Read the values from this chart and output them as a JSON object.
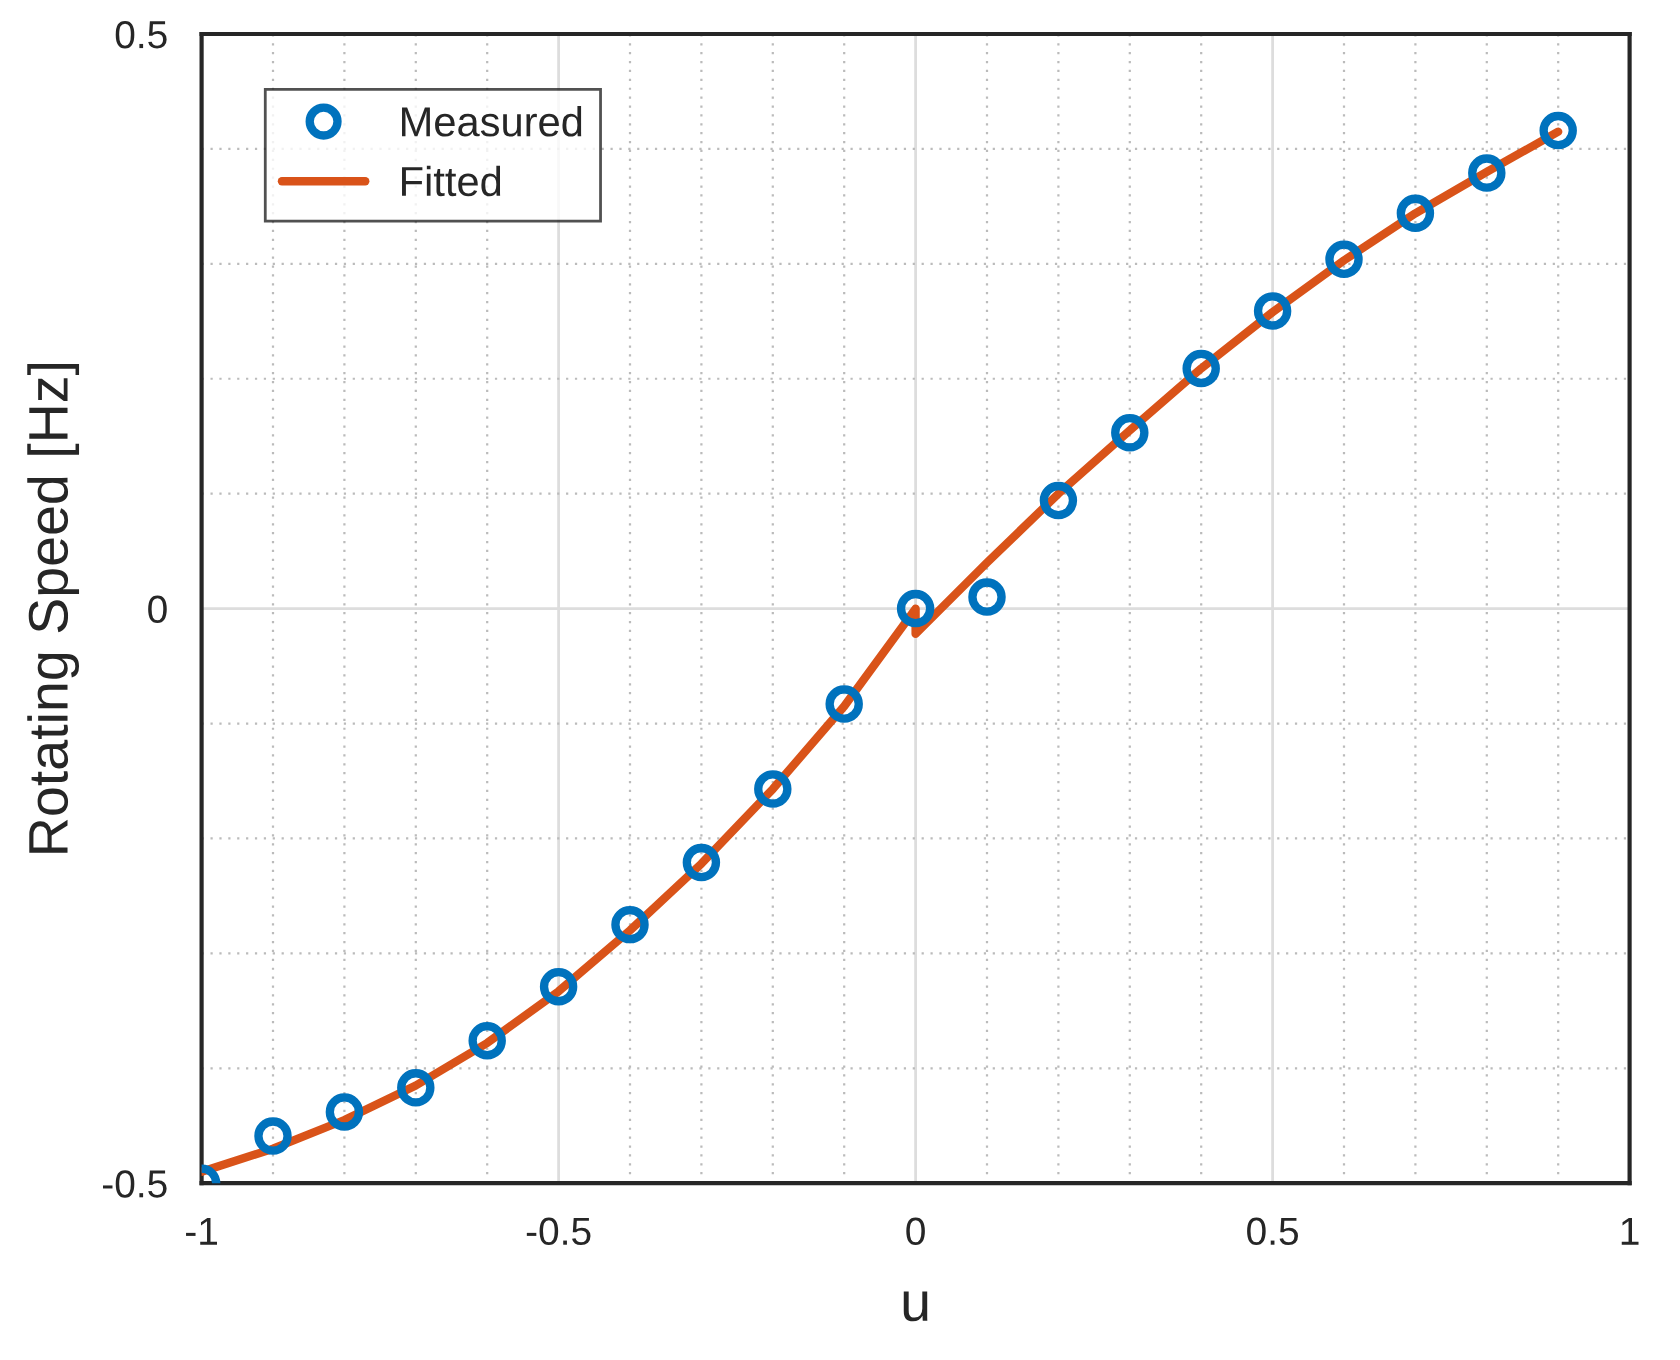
{
  "chart_data": {
    "type": "scatter",
    "xlabel": "u",
    "ylabel": "Rotating Speed [Hz]",
    "xlim": [
      -1,
      1
    ],
    "ylim": [
      -0.5,
      0.5
    ],
    "xticks": [
      -1,
      -0.5,
      0,
      0.5,
      1
    ],
    "yticks": [
      -0.5,
      0,
      0.5
    ],
    "grid": true,
    "legend": "top left",
    "series": [
      {
        "name": "Measured",
        "marker": "circle",
        "color": "#0072bd",
        "x": [
          -1,
          -0.9,
          -0.8,
          -0.7,
          -0.6,
          -0.5,
          -0.4,
          -0.3,
          -0.2,
          -0.1,
          0,
          0.1,
          0.2,
          0.3,
          0.4,
          0.5,
          0.6,
          0.7,
          0.8,
          0.9
        ],
        "values": [
          -0.5,
          -0.459,
          -0.438,
          -0.417,
          -0.376,
          -0.329,
          -0.275,
          -0.221,
          -0.157,
          -0.083,
          0.0,
          0.01,
          0.094,
          0.153,
          0.209,
          0.259,
          0.304,
          0.344,
          0.379,
          0.416
        ]
      },
      {
        "name": "Fitted",
        "type": "line",
        "line_style": "solid",
        "color": "#d95319",
        "x": [
          -1,
          -0.9,
          -0.8,
          -0.7,
          -0.6,
          -0.5,
          -0.4,
          -0.3,
          -0.2,
          -0.1,
          0,
          0,
          0.1,
          0.2,
          0.3,
          0.4,
          0.5,
          0.6,
          0.7,
          0.8,
          0.9
        ],
        "values": [
          -0.49,
          -0.47,
          -0.445,
          -0.415,
          -0.378,
          -0.333,
          -0.28,
          -0.222,
          -0.157,
          -0.085,
          0.0,
          -0.022,
          0.04,
          0.1,
          0.155,
          0.209,
          0.258,
          0.303,
          0.344,
          0.38,
          0.415
        ]
      }
    ]
  }
}
